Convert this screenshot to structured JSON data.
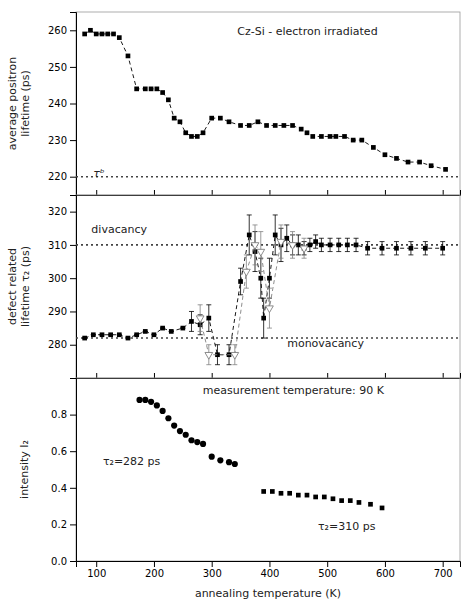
{
  "chart_data": [
    {
      "type": "line",
      "title": "Cz-Si - electron irradiated",
      "ylabel": "average positron\nlifetime (ps)",
      "xlim": [
        65,
        730
      ],
      "xticks": [
        100,
        200,
        300,
        400,
        500,
        600,
        700
      ],
      "ylim": [
        215,
        265
      ],
      "yticks": [
        220,
        230,
        240,
        250,
        260
      ],
      "tick_labels": "y",
      "hlines": [
        {
          "value": 220,
          "label": "τᵇ"
        }
      ],
      "series": [
        {
          "color": "black",
          "marker": "square",
          "line_style": "dashed",
          "x": [
            80,
            90,
            100,
            110,
            120,
            130,
            140,
            155,
            170,
            185,
            195,
            205,
            215,
            225,
            235,
            245,
            255,
            265,
            275,
            285,
            300,
            315,
            330,
            350,
            365,
            380,
            395,
            410,
            425,
            440,
            455,
            465,
            475,
            490,
            505,
            515,
            530,
            545,
            560,
            580,
            600,
            620,
            640,
            660,
            680,
            705
          ],
          "values": [
            259,
            260,
            259,
            259,
            259,
            259,
            258,
            253,
            244,
            244,
            244,
            244,
            243,
            241,
            236,
            235,
            232,
            231,
            231,
            232,
            236,
            236,
            235,
            234,
            234,
            235,
            234,
            234,
            234,
            234,
            233,
            232,
            231,
            231,
            231,
            231,
            231,
            230,
            230,
            228,
            226,
            225,
            224,
            224,
            223,
            222
          ]
        }
      ]
    },
    {
      "type": "line",
      "ylabel": "defect related\nlifetime τ₂ (ps)",
      "xlim": [
        65,
        730
      ],
      "xticks": [
        100,
        200,
        300,
        400,
        500,
        600,
        700
      ],
      "ylim": [
        270,
        325
      ],
      "yticks": [
        280,
        290,
        300,
        310,
        320
      ],
      "tick_labels": "y",
      "hlines": [
        {
          "value": 310,
          "label": "divacancy"
        },
        {
          "value": 282,
          "label": "monovacancy"
        }
      ],
      "series": [
        {
          "color": "black",
          "marker": "square",
          "line_style": "dashed",
          "x": [
            80,
            95,
            110,
            125,
            140,
            155,
            170,
            185,
            200,
            215,
            230,
            250,
            265,
            280,
            295,
            310,
            330,
            350,
            365,
            375,
            385,
            390,
            400,
            410,
            420,
            430,
            440,
            450,
            460,
            470,
            480,
            490,
            505,
            520,
            535,
            550,
            570,
            595,
            620,
            645,
            670,
            700
          ],
          "values": [
            282,
            283,
            283,
            283,
            283,
            282,
            283,
            284,
            283,
            285,
            284,
            285,
            287,
            286,
            288,
            277,
            277,
            299,
            313,
            308,
            300,
            288,
            300,
            313,
            310,
            312,
            310,
            310,
            309,
            310,
            311,
            310,
            310,
            310,
            310,
            310,
            309,
            309,
            309,
            309,
            309,
            309
          ],
          "errors": [
            0,
            0,
            0,
            0,
            0,
            0,
            0,
            0,
            0,
            0,
            0,
            0,
            3,
            3,
            4,
            3,
            3,
            4,
            6,
            6,
            6,
            6,
            6,
            6,
            5,
            4,
            3,
            3,
            2,
            2,
            2,
            2,
            2,
            2,
            2,
            2,
            2,
            2,
            2,
            2,
            2,
            2
          ]
        },
        {
          "color": "gray",
          "marker": "triangle-down-open",
          "line_style": "dashed",
          "x": [
            280,
            295,
            340,
            360,
            375,
            385,
            400,
            420,
            440,
            460
          ],
          "values": [
            288,
            277,
            277,
            302,
            310,
            308,
            291,
            311,
            310,
            309
          ],
          "errors": [
            4,
            3,
            3,
            5,
            6,
            6,
            6,
            5,
            4,
            3
          ]
        }
      ]
    },
    {
      "type": "scatter",
      "ylabel": "intensity I₂",
      "xlabel": "annealing temperature (K)",
      "xlim": [
        65,
        730
      ],
      "xticks": [
        100,
        200,
        300,
        400,
        500,
        600,
        700
      ],
      "ylim": [
        0.0,
        1.0
      ],
      "yticks": [
        {
          "value": 0.0,
          "label": "0.0"
        },
        0.2,
        0.4,
        0.6,
        0.8
      ],
      "annotations": [
        "measurement temperature: 90 K",
        "τ₂=282 ps",
        "τ₂=310 ps"
      ],
      "series": [
        {
          "color": "black",
          "marker": "circle",
          "x": [
            175,
            185,
            195,
            205,
            215,
            225,
            235,
            245,
            255,
            265,
            275,
            285,
            300,
            315,
            330,
            340
          ],
          "values": [
            0.88,
            0.88,
            0.87,
            0.85,
            0.82,
            0.78,
            0.74,
            0.71,
            0.69,
            0.66,
            0.65,
            0.64,
            0.57,
            0.55,
            0.54,
            0.53
          ]
        },
        {
          "color": "black",
          "marker": "square",
          "x": [
            390,
            405,
            420,
            435,
            450,
            465,
            480,
            495,
            510,
            525,
            540,
            555,
            575,
            595
          ],
          "values": [
            0.38,
            0.38,
            0.37,
            0.37,
            0.36,
            0.36,
            0.35,
            0.35,
            0.34,
            0.33,
            0.33,
            0.32,
            0.31,
            0.29
          ]
        }
      ]
    }
  ]
}
